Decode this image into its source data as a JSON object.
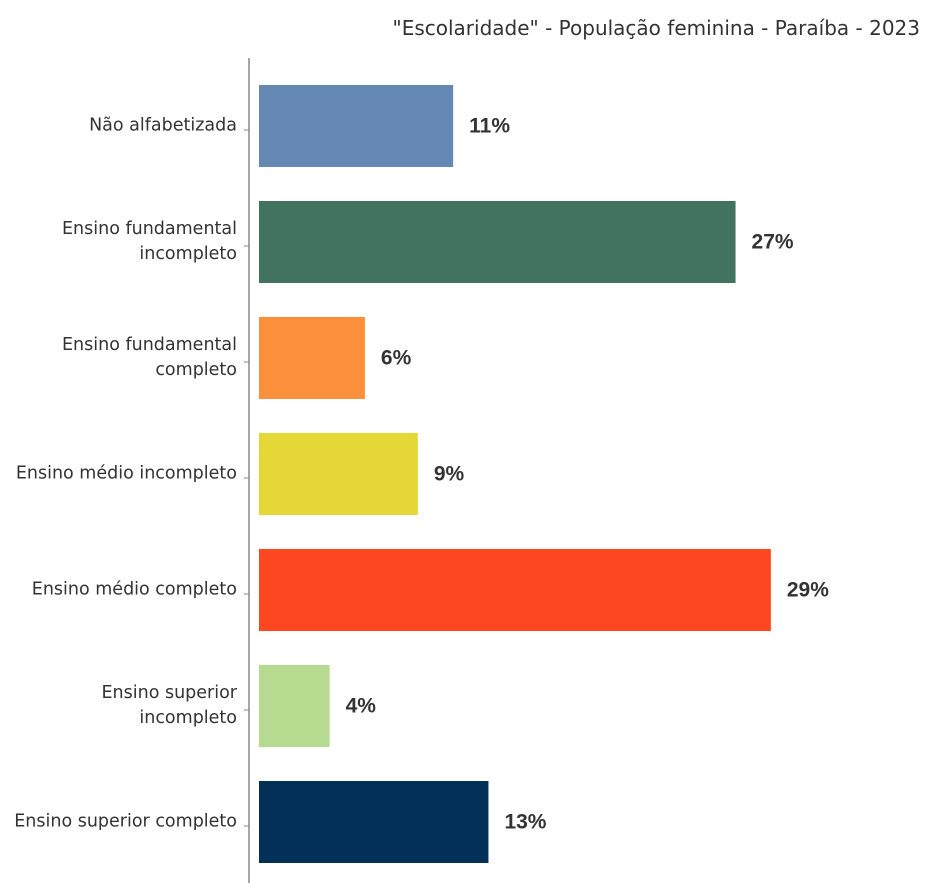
{
  "chart_data": {
    "type": "bar",
    "orientation": "horizontal",
    "title": "\"Escolaridade\" - População feminina - Paraíba - 2023",
    "categories": [
      "Não alfabetizada",
      "Ensino fundamental incompleto",
      "Ensino fundamental completo",
      "Ensino médio incompleto",
      "Ensino médio completo",
      "Ensino superior incompleto",
      "Ensino superior completo"
    ],
    "values": [
      11,
      27,
      6,
      9,
      29,
      4,
      13
    ],
    "value_labels": [
      "11%",
      "27%",
      "6%",
      "9%",
      "29%",
      "4%",
      "13%"
    ],
    "colors": [
      "#6589b3",
      "#427361",
      "#fb8f3c",
      "#e5d836",
      "#fc4720",
      "#b6da8f",
      "#023056"
    ]
  }
}
